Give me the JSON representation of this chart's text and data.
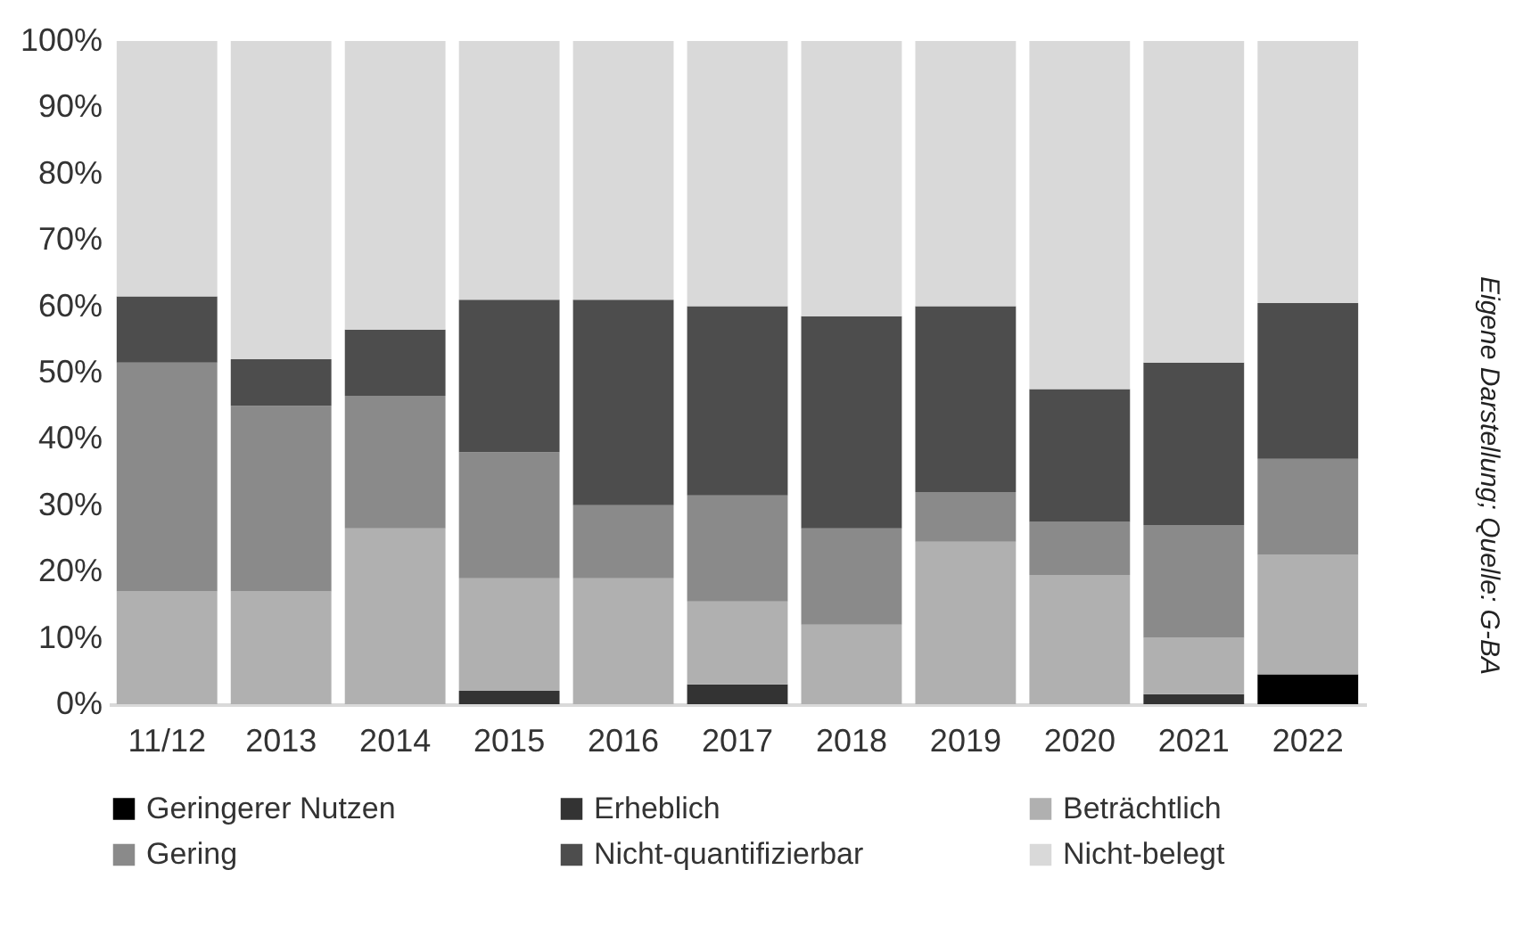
{
  "chart_data": {
    "type": "bar",
    "stacked": true,
    "categories": [
      "11/12",
      "2013",
      "2014",
      "2015",
      "2016",
      "2017",
      "2018",
      "2019",
      "2020",
      "2021",
      "2022"
    ],
    "series": [
      {
        "name": "Geringerer Nutzen",
        "color": "#000000",
        "values": [
          0,
          0,
          0,
          0,
          0,
          0,
          0,
          0,
          0,
          0,
          4.5
        ]
      },
      {
        "name": "Erheblich",
        "color": "#333333",
        "values": [
          0,
          0,
          0,
          2,
          0,
          3,
          0,
          0,
          0,
          1.5,
          0
        ]
      },
      {
        "name": "Beträchtlich",
        "color": "#b0b0b0",
        "values": [
          17,
          17,
          26.5,
          17,
          19,
          12.5,
          12,
          24.5,
          19.5,
          8.5,
          18
        ]
      },
      {
        "name": "Gering",
        "color": "#8a8a8a",
        "values": [
          34.5,
          28,
          20,
          19,
          11,
          16,
          14.5,
          7.5,
          8,
          17,
          14.5
        ]
      },
      {
        "name": "Nicht-quantifizierbar",
        "color": "#4d4d4d",
        "values": [
          10,
          7,
          10,
          23,
          31,
          28.5,
          32,
          28,
          20,
          24.5,
          23.5
        ]
      },
      {
        "name": "Nicht-belegt",
        "color": "#d9d9d9",
        "values": [
          38.5,
          48,
          43.5,
          39,
          39,
          40,
          41.5,
          40,
          52.5,
          48.5,
          39.5
        ]
      }
    ],
    "ylim": [
      0,
      100
    ],
    "yticks": [
      {
        "value": 0,
        "label": "0%"
      },
      {
        "value": 10,
        "label": "10%"
      },
      {
        "value": 20,
        "label": "20%"
      },
      {
        "value": 30,
        "label": "30%"
      },
      {
        "value": 40,
        "label": "40%"
      },
      {
        "value": 50,
        "label": "50%"
      },
      {
        "value": 60,
        "label": "60%"
      },
      {
        "value": 70,
        "label": "70%"
      },
      {
        "value": 80,
        "label": "80%"
      },
      {
        "value": 90,
        "label": "90%"
      },
      {
        "value": 100,
        "label": "100%"
      }
    ],
    "legend": "bottom",
    "annotations": [
      "Eigene Darstellung; Quelle: G-BA"
    ]
  }
}
